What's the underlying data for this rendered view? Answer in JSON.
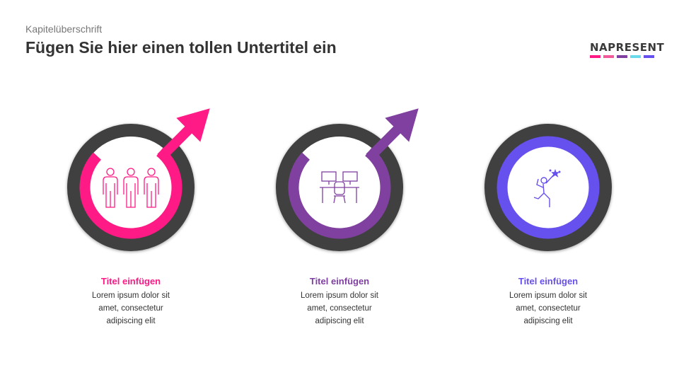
{
  "header": {
    "kicker": "Kapitelüberschrift",
    "title": "Fügen Sie hier einen tollen Untertitel ein"
  },
  "logo": {
    "text": "NAPRESENT",
    "colors": [
      "#ff1a85",
      "#f25a9a",
      "#8040a0",
      "#6adbea",
      "#6650ee"
    ]
  },
  "colors": {
    "ring": "#3f3f3f"
  },
  "items": [
    {
      "title": "Titel einfügen",
      "text": [
        "Lorem ipsum dolor sit",
        "amet, consectetur",
        "adipiscing elit"
      ],
      "color": "#ff1a85",
      "icon": "team-icon",
      "arrow": true
    },
    {
      "title": "Titel einfügen",
      "text": [
        "Lorem ipsum dolor sit",
        "amet, consectetur",
        "adipiscing elit"
      ],
      "color": "#8040a0",
      "icon": "workspace-icon",
      "arrow": true
    },
    {
      "title": "Titel einfügen",
      "text": [
        "Lorem ipsum dolor sit",
        "amet, consectetur",
        "adipiscing elit"
      ],
      "color": "#6650ee",
      "icon": "achievement-icon",
      "arrow": false
    }
  ]
}
